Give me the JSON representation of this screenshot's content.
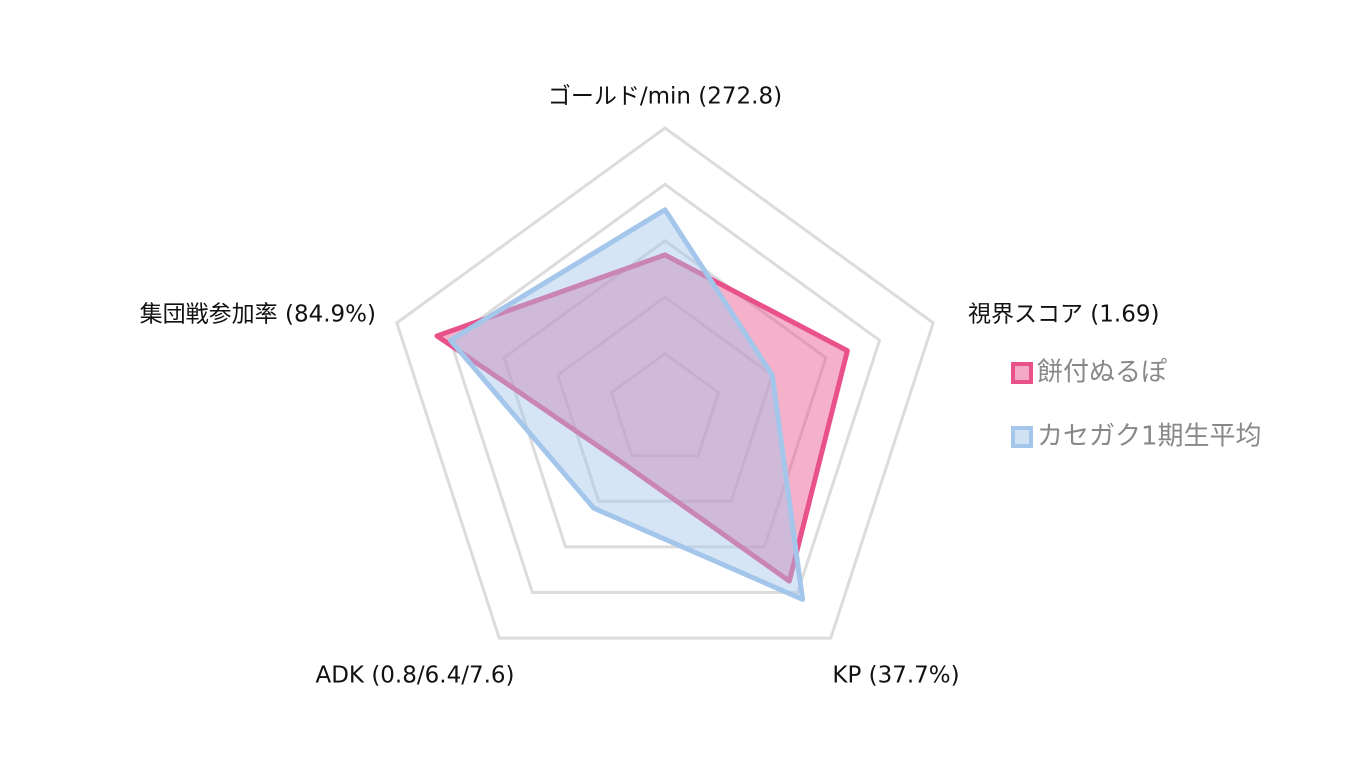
{
  "chart_data": {
    "type": "radar",
    "categories": [
      "ゴールド/min (272.8)",
      "視界スコア (1.69)",
      "KP (37.7%)",
      "ADK (0.8/6.4/7.6)",
      "集団戦参加率 (84.9%)"
    ],
    "series": [
      {
        "name": "餅付ぬるぽ",
        "color": "#e8518a",
        "values": [
          55,
          68,
          75,
          24,
          85
        ]
      },
      {
        "name": "カセガク1期生平均",
        "color": "#a3c6ea",
        "values": [
          71,
          40,
          83,
          43,
          80
        ]
      }
    ],
    "ylim": [
      0,
      100
    ],
    "yticks": [
      20,
      40,
      60,
      80,
      100
    ],
    "grid": true
  }
}
